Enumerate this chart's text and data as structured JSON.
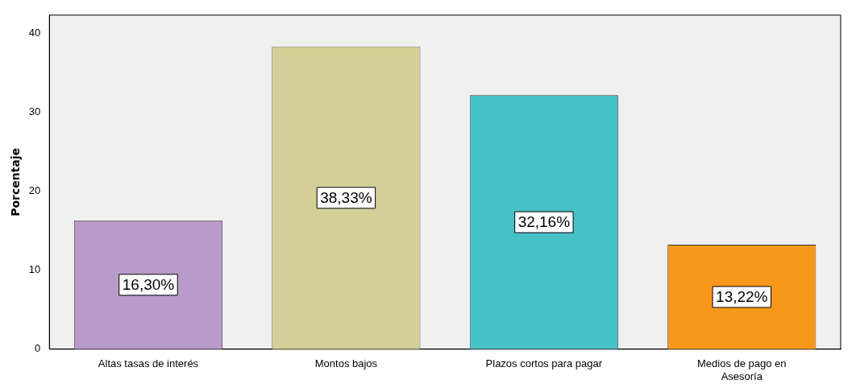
{
  "chart_data": {
    "type": "bar",
    "ylabel": "Porcentaje",
    "categories": [
      "Altas tasas de interés",
      "Montos bajos",
      "Plazos cortos para pagar",
      "Medios de pago en Asesoría"
    ],
    "values": [
      16.3,
      38.33,
      32.16,
      13.22
    ],
    "value_labels": [
      "16,30%",
      "38,33%",
      "32,16%",
      "13,22%"
    ],
    "colors": [
      "#b89bc9",
      "#d3cf97",
      "#48c1c6",
      "#f7981d"
    ],
    "ylim": [
      0,
      42.3
    ],
    "yticks": [
      0,
      10,
      20,
      30,
      40
    ],
    "grid": false,
    "legend": false
  }
}
